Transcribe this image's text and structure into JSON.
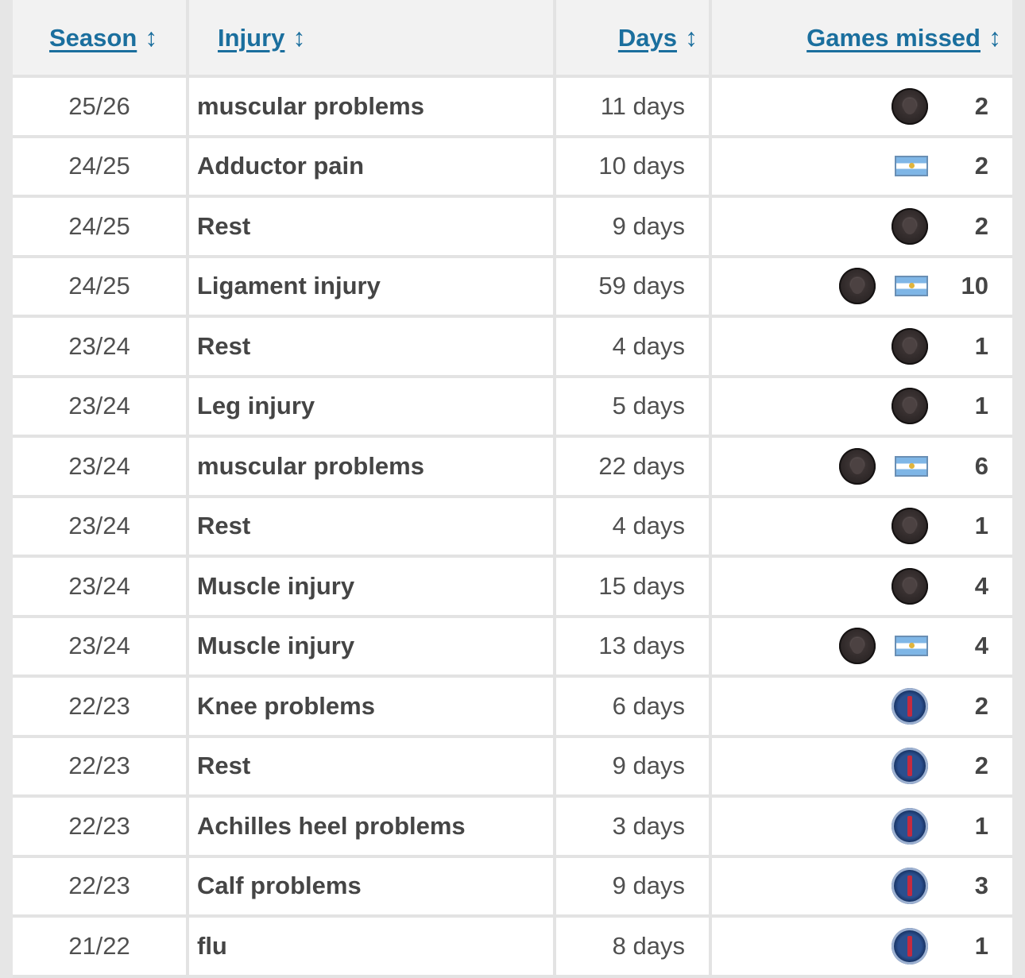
{
  "headers": {
    "season": "Season",
    "injury": "Injury",
    "days": "Days",
    "games_missed": "Games missed",
    "sort_glyph": "↕"
  },
  "rows": [
    {
      "season": "25/26",
      "injury": "muscular problems",
      "days": "11 days",
      "icons": [
        "club-dark"
      ],
      "games": "2"
    },
    {
      "season": "24/25",
      "injury": "Adductor pain",
      "days": "10 days",
      "icons": [
        "flag-argentina"
      ],
      "games": "2"
    },
    {
      "season": "24/25",
      "injury": "Rest",
      "days": "9 days",
      "icons": [
        "club-dark"
      ],
      "games": "2"
    },
    {
      "season": "24/25",
      "injury": "Ligament injury",
      "days": "59 days",
      "icons": [
        "club-dark",
        "flag-argentina"
      ],
      "games": "10"
    },
    {
      "season": "23/24",
      "injury": "Rest",
      "days": "4 days",
      "icons": [
        "club-dark"
      ],
      "games": "1"
    },
    {
      "season": "23/24",
      "injury": "Leg injury",
      "days": "5 days",
      "icons": [
        "club-dark"
      ],
      "games": "1"
    },
    {
      "season": "23/24",
      "injury": "muscular problems",
      "days": "22 days",
      "icons": [
        "club-dark",
        "flag-argentina"
      ],
      "games": "6"
    },
    {
      "season": "23/24",
      "injury": "Rest",
      "days": "4 days",
      "icons": [
        "club-dark"
      ],
      "games": "1"
    },
    {
      "season": "23/24",
      "injury": "Muscle injury",
      "days": "15 days",
      "icons": [
        "club-dark"
      ],
      "games": "4"
    },
    {
      "season": "23/24",
      "injury": "Muscle injury",
      "days": "13 days",
      "icons": [
        "club-dark",
        "flag-argentina"
      ],
      "games": "4"
    },
    {
      "season": "22/23",
      "injury": "Knee problems",
      "days": "6 days",
      "icons": [
        "club-psg"
      ],
      "games": "2"
    },
    {
      "season": "22/23",
      "injury": "Rest",
      "days": "9 days",
      "icons": [
        "club-psg"
      ],
      "games": "2"
    },
    {
      "season": "22/23",
      "injury": "Achilles heel problems",
      "days": "3 days",
      "icons": [
        "club-psg"
      ],
      "games": "1"
    },
    {
      "season": "22/23",
      "injury": "Calf problems",
      "days": "9 days",
      "icons": [
        "club-psg"
      ],
      "games": "3"
    },
    {
      "season": "21/22",
      "injury": "flu",
      "days": "8 days",
      "icons": [
        "club-psg"
      ],
      "games": "1"
    }
  ]
}
